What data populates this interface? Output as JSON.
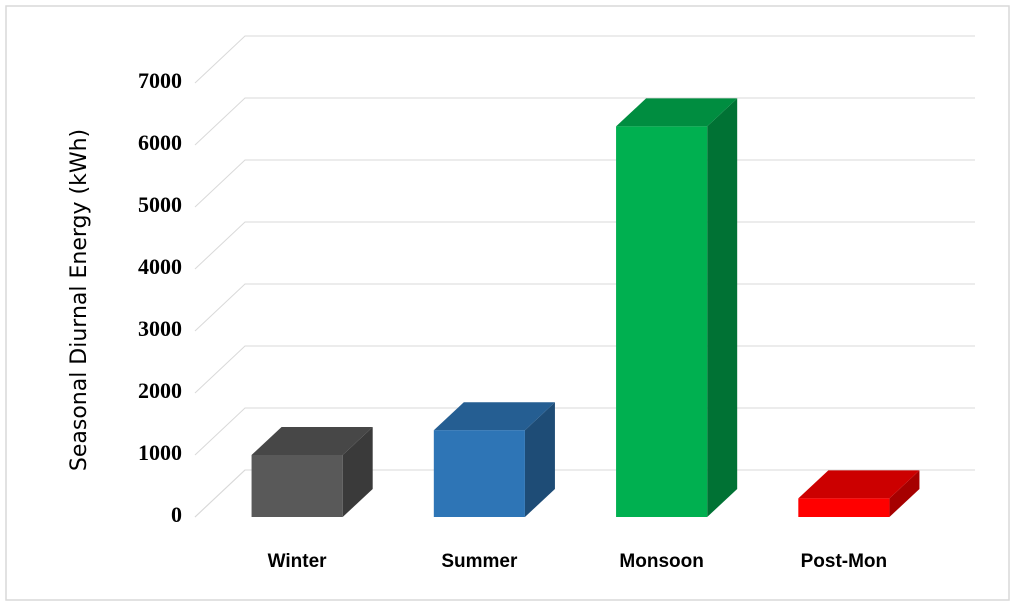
{
  "chart_data": {
    "type": "bar3d",
    "y_label": "Seasonal Diurnal Energy (kWh)",
    "categories": [
      "Winter",
      "Summer",
      "Monsoon",
      "Post-Mon"
    ],
    "values": [
      1000,
      1400,
      6300,
      300
    ],
    "colors": [
      "#595959",
      "#2e75b6",
      "#00b050",
      "#ff0000"
    ],
    "ylim": [
      0,
      7000
    ],
    "yticks": [
      0,
      1000,
      2000,
      3000,
      4000,
      5000,
      6000,
      7000
    ],
    "grid": true
  }
}
